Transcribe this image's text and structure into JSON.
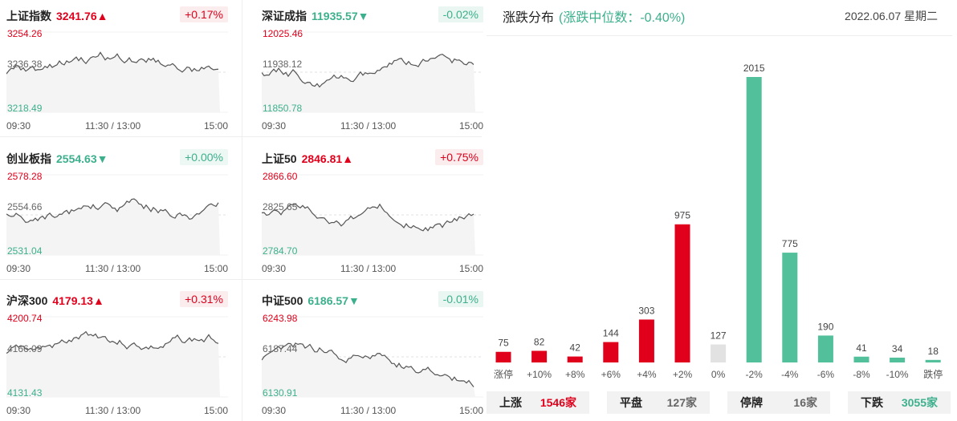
{
  "time_labels": [
    "09:30",
    "11:30 / 13:00",
    "15:00"
  ],
  "indices": [
    {
      "name": "上证指数",
      "value": "3241.76",
      "arrow": "▲",
      "change": "+0.17%",
      "dir": "up",
      "y_high": "3254.26",
      "y_mid": "3236.38",
      "y_low": "3218.49"
    },
    {
      "name": "深证成指",
      "value": "11935.57",
      "arrow": "▼",
      "change": "-0.02%",
      "dir": "down",
      "y_high": "12025.46",
      "y_mid": "11938.12",
      "y_low": "11850.78"
    },
    {
      "name": "创业板指",
      "value": "2554.63",
      "arrow": "▼",
      "change": "+0.00%",
      "dir": "down",
      "y_high": "2578.28",
      "y_mid": "2554.66",
      "y_low": "2531.04"
    },
    {
      "name": "上证50",
      "value": "2846.81",
      "arrow": "▲",
      "change": "+0.75%",
      "dir": "up",
      "y_high": "2866.60",
      "y_mid": "2825.65",
      "y_low": "2784.70"
    },
    {
      "name": "沪深300",
      "value": "4179.13",
      "arrow": "▲",
      "change": "+0.31%",
      "dir": "up",
      "y_high": "4200.74",
      "y_mid": "4166.09",
      "y_low": "4131.43"
    },
    {
      "name": "中证500",
      "value": "6186.57",
      "arrow": "▼",
      "change": "-0.01%",
      "dir": "down",
      "y_high": "6243.98",
      "y_mid": "6187.44",
      "y_low": "6130.91"
    }
  ],
  "distribution": {
    "title": "涨跌分布",
    "subtitle": "(涨跌中位数：-0.40%)",
    "date": "2022.06.07 星期二",
    "colors": {
      "up": "#e0001b",
      "flat": "#e2e2e2",
      "down": "#52c09b"
    }
  },
  "chart_data": {
    "type": "bar",
    "categories": [
      "涨停",
      "+10%",
      "+8%",
      "+6%",
      "+4%",
      "+2%",
      "0%",
      "-2%",
      "-4%",
      "-6%",
      "-8%",
      "-10%",
      "跌停"
    ],
    "values": [
      75,
      82,
      42,
      144,
      303,
      975,
      127,
      2015,
      775,
      190,
      41,
      34,
      18
    ],
    "groups": [
      "up",
      "up",
      "up",
      "up",
      "up",
      "up",
      "flat",
      "down",
      "down",
      "down",
      "down",
      "down",
      "down"
    ]
  },
  "summary": [
    {
      "label": "上涨",
      "value": "1546家",
      "dir": "up"
    },
    {
      "label": "平盘",
      "value": "127家",
      "dir": "flat"
    },
    {
      "label": "停牌",
      "value": "16家",
      "dir": "flat"
    },
    {
      "label": "下跌",
      "value": "3055家",
      "dir": "down"
    }
  ]
}
